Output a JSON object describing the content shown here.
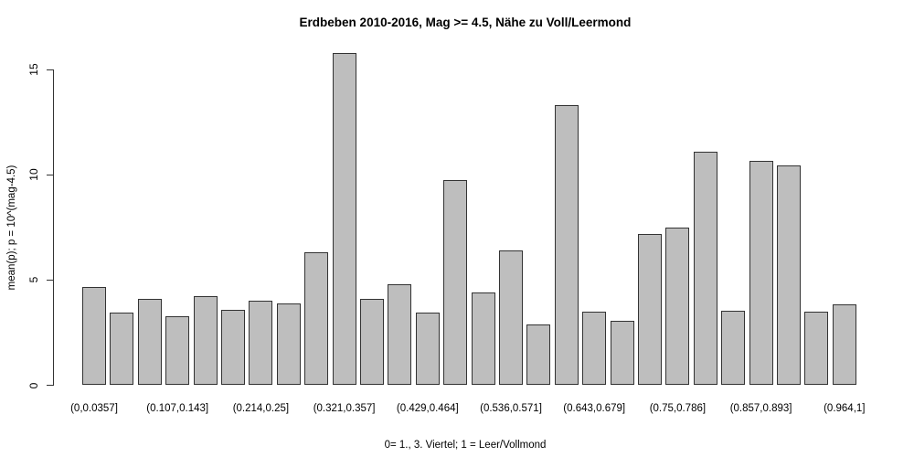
{
  "chart_data": {
    "type": "bar",
    "title": "Erdbeben 2010-2016, Mag >= 4.5, Nähe zu Voll/Leermond",
    "xlabel": "0= 1., 3. Viertel; 1 = Leer/Vollmond",
    "ylabel": "mean(p); p = 10^(mag-4.5)",
    "n_bars": 28,
    "values": [
      4.65,
      3.45,
      4.1,
      3.3,
      4.25,
      3.6,
      4.0,
      3.9,
      6.3,
      15.8,
      4.1,
      4.8,
      3.45,
      9.75,
      4.4,
      6.4,
      2.9,
      13.3,
      3.5,
      3.05,
      7.2,
      7.5,
      11.1,
      3.55,
      10.65,
      10.45,
      3.5,
      3.85
    ],
    "x_tick_labels": [
      {
        "bar_index": 0,
        "label": "(0,0.0357]"
      },
      {
        "bar_index": 3,
        "label": "(0.107,0.143]"
      },
      {
        "bar_index": 6,
        "label": "(0.214,0.25]"
      },
      {
        "bar_index": 9,
        "label": "(0.321,0.357]"
      },
      {
        "bar_index": 12,
        "label": "(0.429,0.464]"
      },
      {
        "bar_index": 15,
        "label": "(0.536,0.571]"
      },
      {
        "bar_index": 18,
        "label": "(0.643,0.679]"
      },
      {
        "bar_index": 21,
        "label": "(0.75,0.786]"
      },
      {
        "bar_index": 24,
        "label": "(0.857,0.893]"
      },
      {
        "bar_index": 27,
        "label": "(0.964,1]"
      }
    ],
    "y_ticks": [
      0,
      5,
      10,
      15
    ],
    "ylim": [
      0,
      15.8
    ],
    "grid": false,
    "legend": null,
    "bar_fill": "#bebebe",
    "bar_border": "#333333",
    "axis_color": "#333333",
    "background": "#ffffff"
  }
}
